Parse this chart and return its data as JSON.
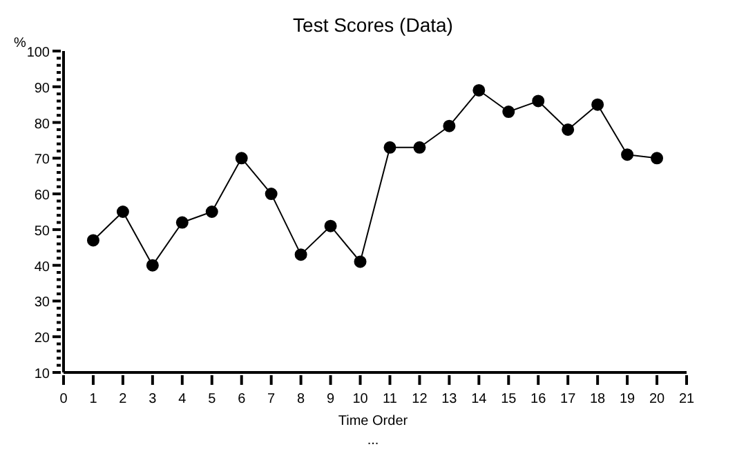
{
  "chart_data": {
    "type": "line",
    "title": "Test Scores (Data)",
    "xlabel": "Time Order",
    "ylabel": "%",
    "annotations": [
      "..."
    ],
    "x": [
      1,
      2,
      3,
      4,
      5,
      6,
      7,
      8,
      9,
      10,
      11,
      12,
      13,
      14,
      15,
      16,
      17,
      18,
      19,
      20
    ],
    "series": [
      {
        "color": "#000000",
        "values": [
          47,
          55,
          40,
          52,
          55,
          70,
          60,
          43,
          51,
          41,
          73,
          73,
          79,
          89,
          83,
          86,
          78,
          85,
          71,
          70
        ]
      }
    ],
    "xlim": [
      0,
      21
    ],
    "xticks": [
      0,
      1,
      2,
      3,
      4,
      5,
      6,
      7,
      8,
      9,
      10,
      11,
      12,
      13,
      14,
      15,
      16,
      17,
      18,
      19,
      20,
      21
    ],
    "ylim": [
      10,
      100
    ],
    "yticks": [
      10,
      {
        "value": 12,
        "label": null
      },
      {
        "value": 14,
        "label": null
      },
      {
        "value": 16,
        "label": null
      },
      {
        "value": 18,
        "label": null
      },
      20,
      {
        "value": 22,
        "label": null
      },
      {
        "value": 24,
        "label": null
      },
      {
        "value": 26,
        "label": null
      },
      {
        "value": 28,
        "label": null
      },
      30,
      {
        "value": 32,
        "label": null
      },
      {
        "value": 34,
        "label": null
      },
      {
        "value": 36,
        "label": null
      },
      {
        "value": 38,
        "label": null
      },
      40,
      {
        "value": 42,
        "label": null
      },
      {
        "value": 44,
        "label": null
      },
      {
        "value": 46,
        "label": null
      },
      {
        "value": 48,
        "label": null
      },
      50,
      {
        "value": 52,
        "label": null
      },
      {
        "value": 54,
        "label": null
      },
      {
        "value": 56,
        "label": null
      },
      {
        "value": 58,
        "label": null
      },
      60,
      {
        "value": 62,
        "label": null
      },
      {
        "value": 64,
        "label": null
      },
      {
        "value": 66,
        "label": null
      },
      {
        "value": 68,
        "label": null
      },
      70,
      {
        "value": 72,
        "label": null
      },
      {
        "value": 74,
        "label": null
      },
      {
        "value": 76,
        "label": null
      },
      {
        "value": 78,
        "label": null
      },
      80,
      {
        "value": 82,
        "label": null
      },
      {
        "value": 84,
        "label": null
      },
      {
        "value": 86,
        "label": null
      },
      {
        "value": 88,
        "label": null
      },
      90,
      {
        "value": 92,
        "label": null
      },
      {
        "value": 94,
        "label": null
      },
      {
        "value": 96,
        "label": null
      },
      {
        "value": 98,
        "label": null
      },
      100
    ],
    "grid": false,
    "marker": "circle",
    "line_style": "solid"
  }
}
